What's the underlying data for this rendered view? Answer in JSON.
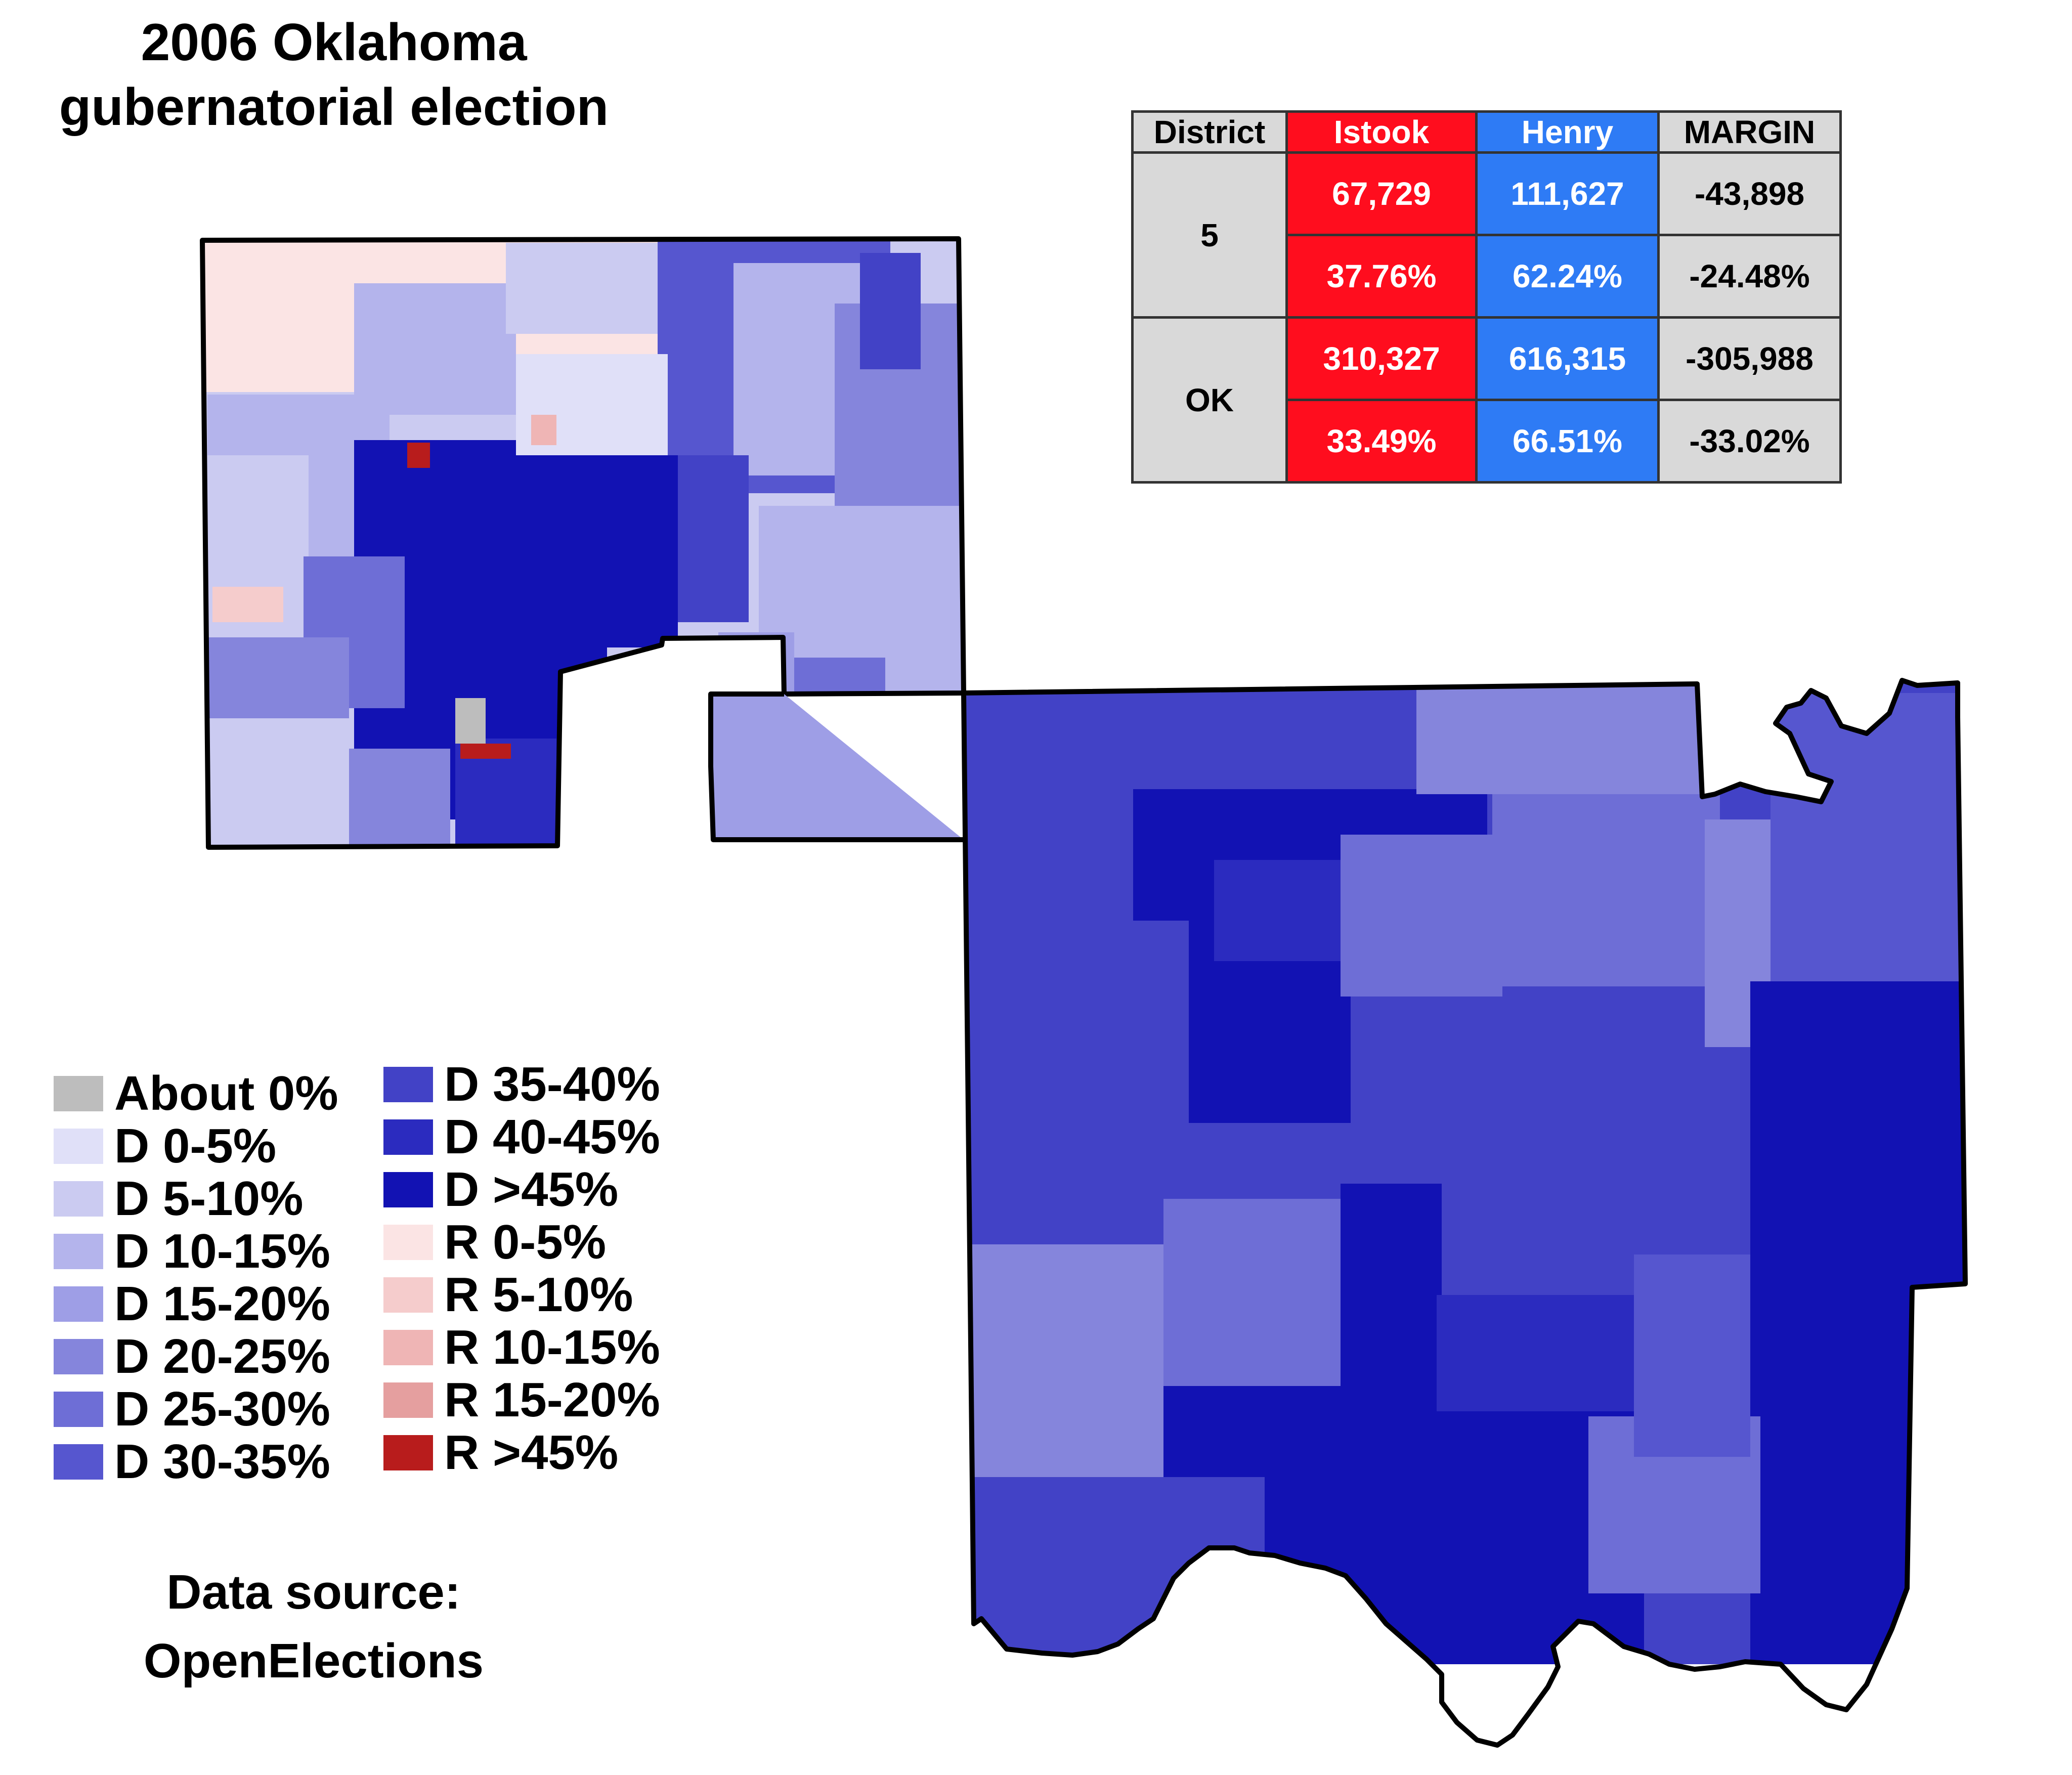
{
  "title": {
    "line1": "2006 Oklahoma",
    "line2": "gubernatorial election"
  },
  "results_table": {
    "headers": {
      "district": "District",
      "candidate_r": "Istook",
      "candidate_d": "Henry",
      "margin": "MARGIN"
    },
    "rows": [
      {
        "district": "5",
        "r_votes": "67,729",
        "d_votes": "111,627",
        "margin_votes": "-43,898",
        "r_pct": "37.76%",
        "d_pct": "62.24%",
        "margin_pct": "-24.48%"
      },
      {
        "district": "OK",
        "r_votes": "310,327",
        "d_votes": "616,315",
        "margin_votes": "-305,988",
        "r_pct": "33.49%",
        "d_pct": "66.51%",
        "margin_pct": "-33.02%"
      }
    ],
    "colors": {
      "republican": "#ff0d1e",
      "democrat": "#2e7bf5",
      "neutral": "#d9d9d9"
    }
  },
  "legend": {
    "left": [
      {
        "label": "About 0%",
        "color": "#bdbdbd"
      },
      {
        "label": "D 0-5%",
        "color": "#e0e0f8"
      },
      {
        "label": "D 5-10%",
        "color": "#cbcbf1"
      },
      {
        "label": "D 10-15%",
        "color": "#b4b4ec"
      },
      {
        "label": "D 15-20%",
        "color": "#9e9ee6"
      },
      {
        "label": "D 20-25%",
        "color": "#8585dc"
      },
      {
        "label": "D 25-30%",
        "color": "#6e6ed6"
      },
      {
        "label": "D 30-35%",
        "color": "#5656cf"
      }
    ],
    "right": [
      {
        "label": "D 35-40%",
        "color": "#4242c6"
      },
      {
        "label": "D 40-45%",
        "color": "#2b2bbf"
      },
      {
        "label": "D >45%",
        "color": "#1212b3"
      },
      {
        "label": "R 0-5%",
        "color": "#fbe4e4"
      },
      {
        "label": "R 5-10%",
        "color": "#f5cccc"
      },
      {
        "label": "R 10-15%",
        "color": "#efb5b5"
      },
      {
        "label": "R 15-20%",
        "color": "#e59f9f"
      },
      {
        "label": "R >45%",
        "color": "#b81c1c"
      }
    ]
  },
  "source": {
    "line1": "Data source:",
    "line2": "OpenElections"
  }
}
